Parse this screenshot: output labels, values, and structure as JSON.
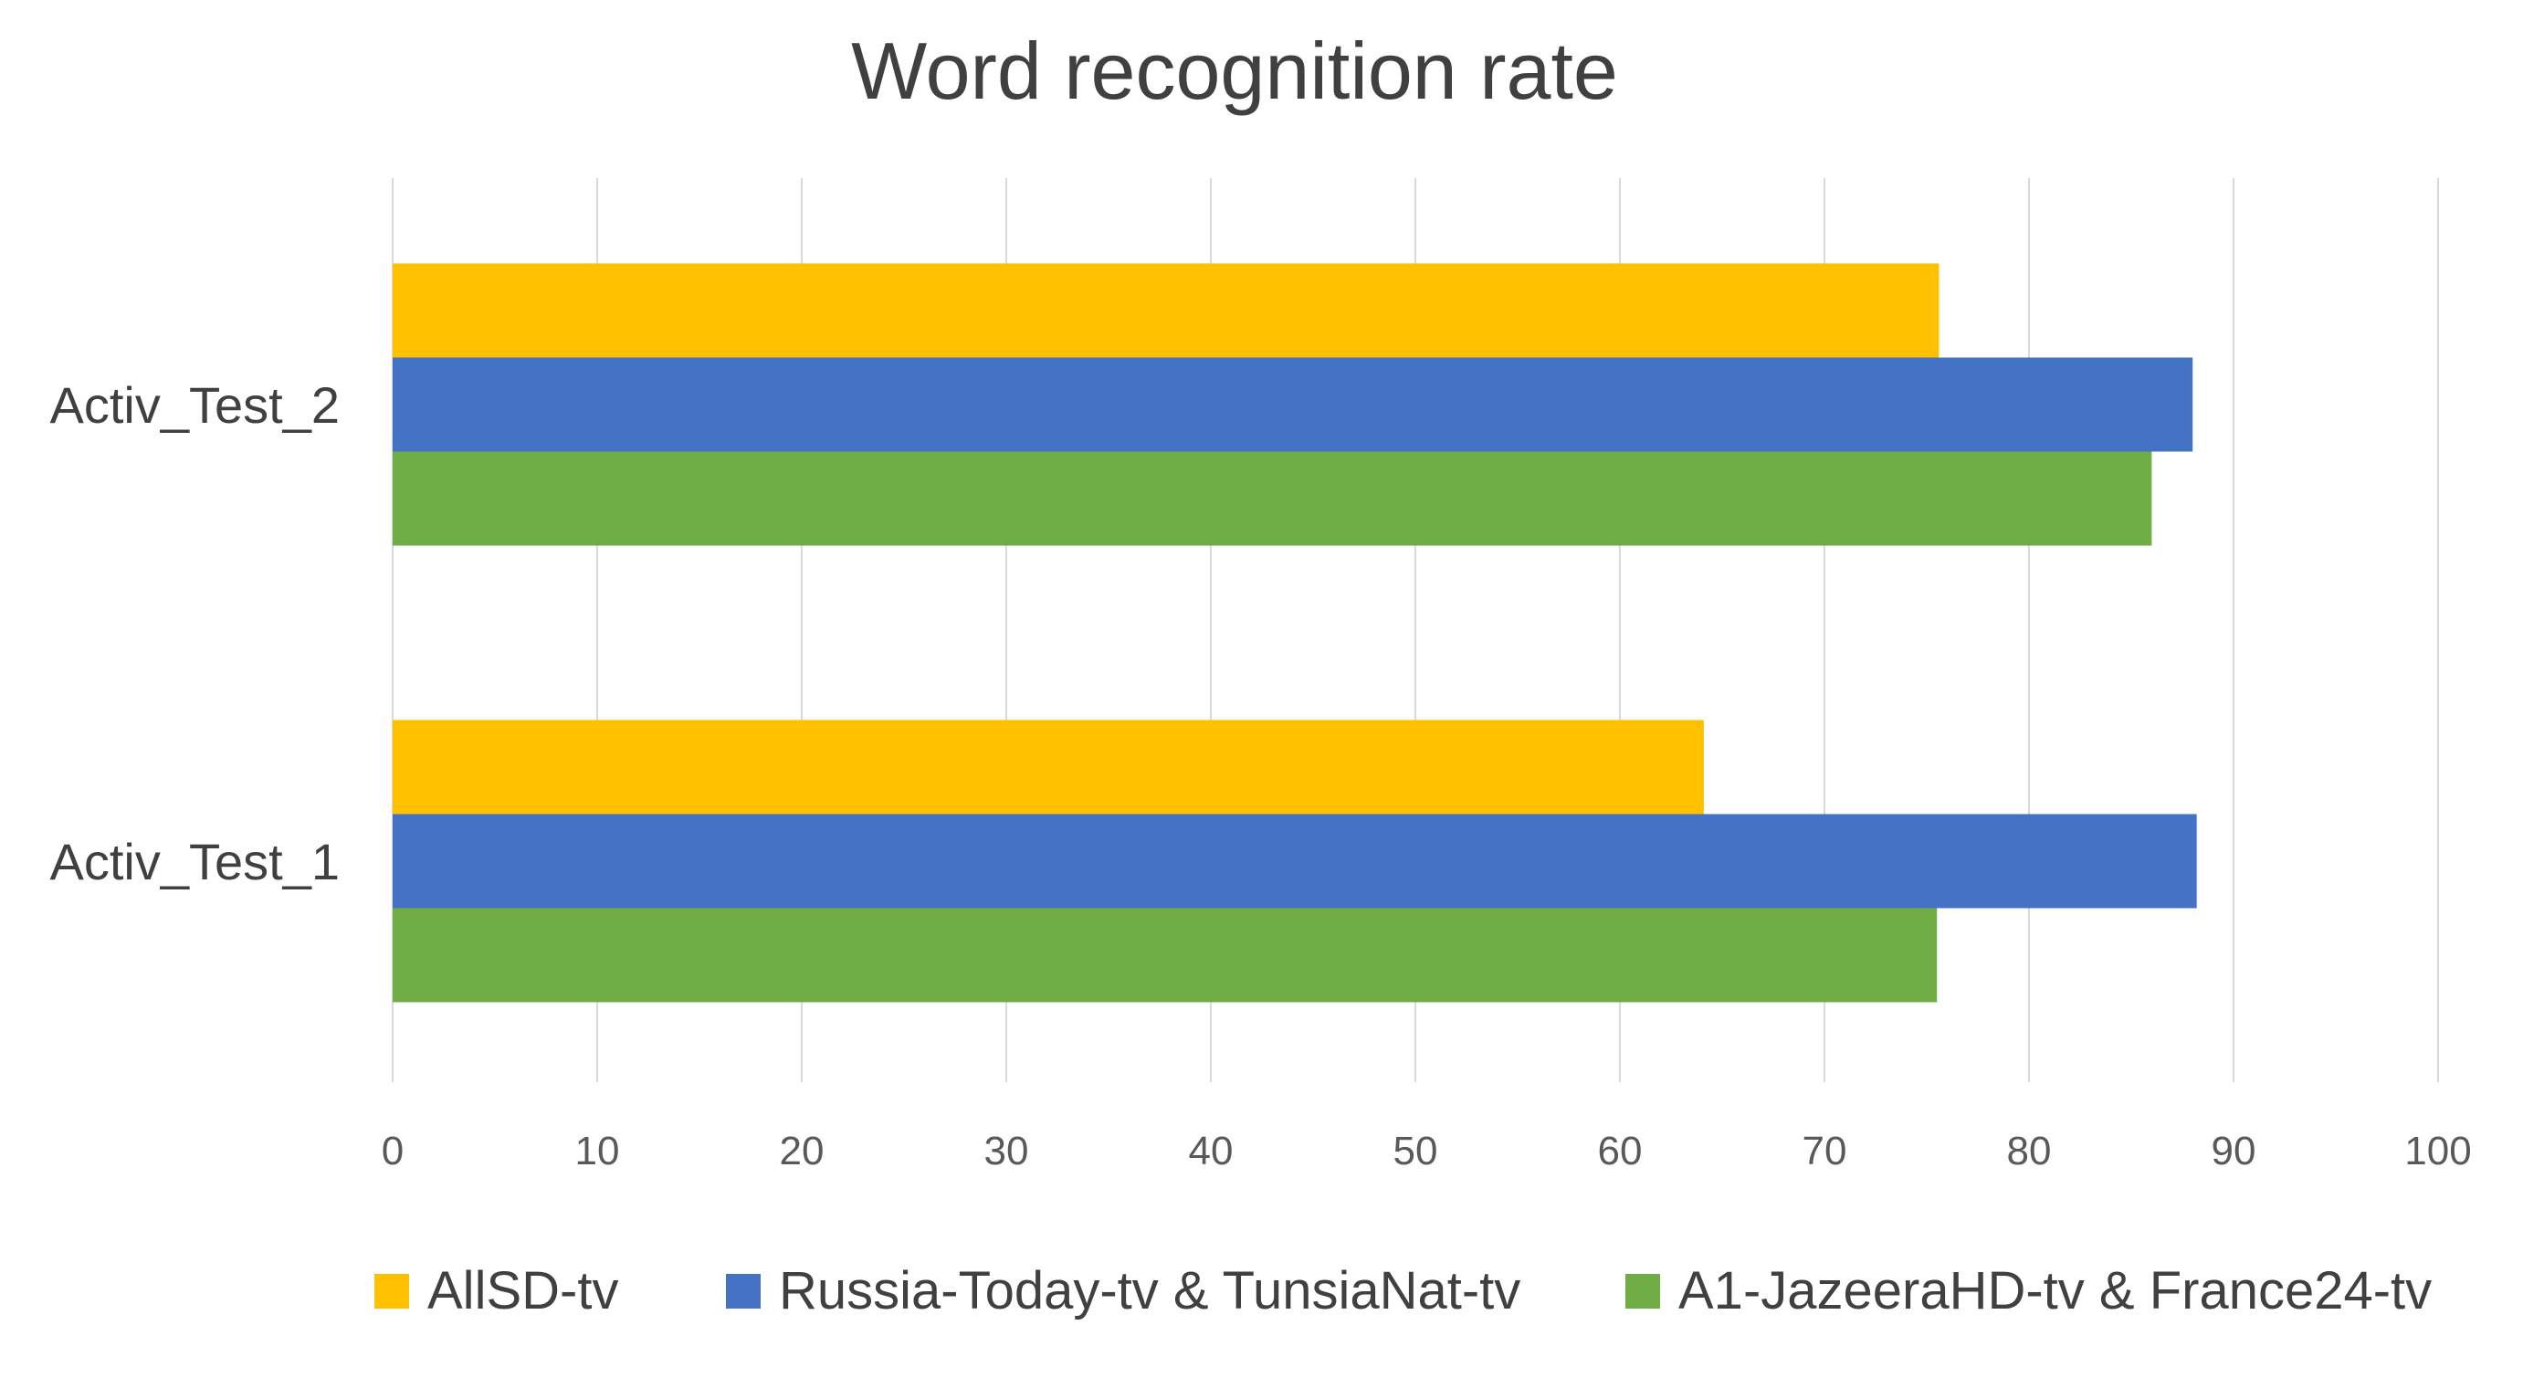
{
  "chart_data": {
    "type": "bar",
    "orientation": "horizontal",
    "title": "Word recognition rate",
    "xlim": [
      0,
      100
    ],
    "x_ticks": [
      "0",
      "10",
      "20",
      "30",
      "40",
      "50",
      "60",
      "70",
      "80",
      "90",
      "100"
    ],
    "categories": [
      "Activ_Test_2",
      "Activ_Test_1"
    ],
    "series": [
      {
        "name": "AllSD-tv",
        "color": "#FFC000",
        "values": [
          75.6,
          64.1
        ]
      },
      {
        "name": "Russia-Today-tv & TunsiaNat-tv",
        "color": "#4472C4",
        "values": [
          88.0,
          88.2
        ]
      },
      {
        "name": "A1-JazeeraHD-tv & France24-tv",
        "color": "#70AD47",
        "values": [
          86.0,
          75.5
        ]
      }
    ],
    "grid": true,
    "legend_position": "bottom"
  }
}
